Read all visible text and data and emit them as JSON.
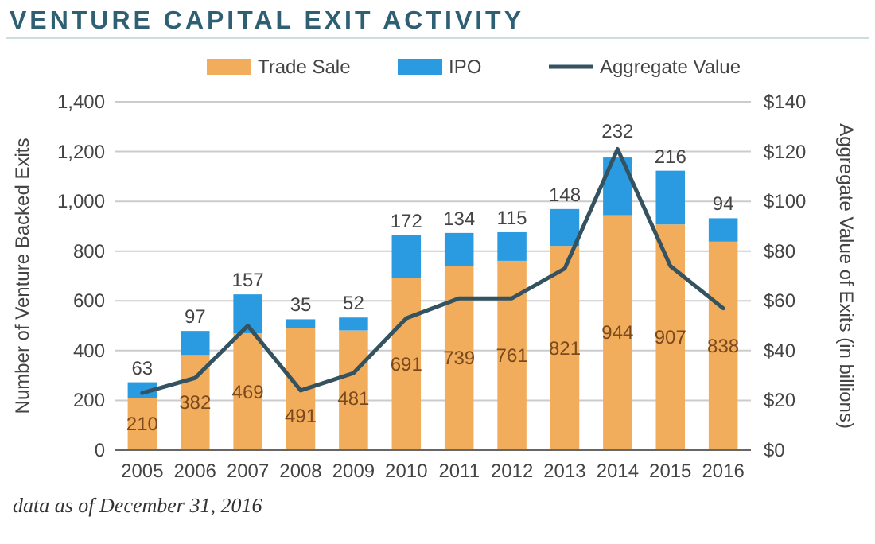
{
  "chart_data": {
    "type": "bar",
    "title": "VENTURE CAPITAL EXIT ACTIVITY",
    "ylabel": "Number of Venture Backed Exits",
    "y2label": "Aggregate Value of Exits (in billions)",
    "annotations": [
      "data as of December 31, 2016"
    ],
    "categories": [
      "2005",
      "2006",
      "2007",
      "2008",
      "2009",
      "2010",
      "2011",
      "2012",
      "2013",
      "2014",
      "2015",
      "2016"
    ],
    "stacked": true,
    "grid": "y",
    "legend": "top",
    "series": [
      {
        "name": "Trade Sale",
        "color": "#f2ad5c",
        "values": [
          210,
          382,
          469,
          491,
          481,
          691,
          739,
          761,
          821,
          944,
          907,
          838
        ],
        "value_labels": [
          "210",
          "382",
          "469",
          "491",
          "481",
          "691",
          "739",
          "761",
          "821",
          "944",
          "907",
          "838"
        ]
      },
      {
        "name": "IPO",
        "color": "#2a9be0",
        "values": [
          63,
          97,
          157,
          35,
          52,
          172,
          134,
          115,
          148,
          232,
          216,
          94
        ],
        "value_labels": [
          "63",
          "97",
          "157",
          "35",
          "52",
          "172",
          "134",
          "115",
          "148",
          "232",
          "216",
          "94"
        ]
      },
      {
        "name": "Aggregate Value",
        "type": "line",
        "axis": "y2",
        "color": "#34525f",
        "values": [
          23,
          29,
          50,
          24,
          31,
          53,
          61,
          61,
          73,
          121,
          74,
          57
        ]
      }
    ],
    "ylim": [
      0,
      1400
    ],
    "yticks": [
      {
        "value": 0,
        "label": "0"
      },
      {
        "value": 200,
        "label": "200"
      },
      {
        "value": 400,
        "label": "400"
      },
      {
        "value": 600,
        "label": "600"
      },
      {
        "value": 800,
        "label": "800"
      },
      {
        "value": 1000,
        "label": "1,000"
      },
      {
        "value": 1200,
        "label": "1,200"
      },
      {
        "value": 1400,
        "label": "1,400"
      }
    ],
    "y2lim": [
      0,
      140
    ],
    "y2ticks": [
      {
        "value": 0,
        "label": "$0"
      },
      {
        "value": 20,
        "label": "$20"
      },
      {
        "value": 40,
        "label": "$40"
      },
      {
        "value": 60,
        "label": "$60"
      },
      {
        "value": 80,
        "label": "$80"
      },
      {
        "value": 100,
        "label": "$100"
      },
      {
        "value": 120,
        "label": "$120"
      },
      {
        "value": 140,
        "label": "$140"
      }
    ]
  }
}
